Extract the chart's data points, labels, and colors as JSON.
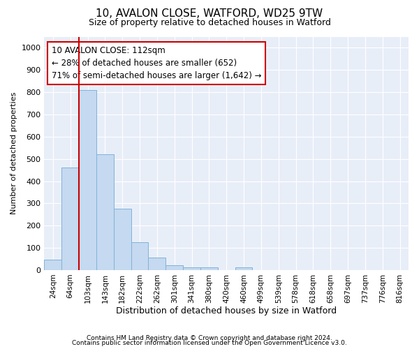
{
  "title1": "10, AVALON CLOSE, WATFORD, WD25 9TW",
  "title2": "Size of property relative to detached houses in Watford",
  "xlabel": "Distribution of detached houses by size in Watford",
  "ylabel": "Number of detached properties",
  "categories": [
    "24sqm",
    "64sqm",
    "103sqm",
    "143sqm",
    "182sqm",
    "222sqm",
    "262sqm",
    "301sqm",
    "341sqm",
    "380sqm",
    "420sqm",
    "460sqm",
    "499sqm",
    "539sqm",
    "578sqm",
    "618sqm",
    "658sqm",
    "697sqm",
    "737sqm",
    "776sqm",
    "816sqm"
  ],
  "values": [
    47,
    460,
    810,
    520,
    275,
    125,
    57,
    22,
    12,
    12,
    0,
    12,
    0,
    0,
    0,
    0,
    0,
    0,
    0,
    0,
    0
  ],
  "bar_color": "#c5d9f0",
  "bar_edge_color": "#7fb3d9",
  "vline_color": "#cc0000",
  "vline_index": 2,
  "ylim": [
    0,
    1050
  ],
  "yticks": [
    0,
    100,
    200,
    300,
    400,
    500,
    600,
    700,
    800,
    900,
    1000
  ],
  "annotation_text_line1": "10 AVALON CLOSE: 112sqm",
  "annotation_text_line2": "← 28% of detached houses are smaller (652)",
  "annotation_text_line3": "71% of semi-detached houses are larger (1,642) →",
  "annotation_box_color": "#cc0000",
  "background_color": "#e8eef8",
  "grid_color": "#ffffff",
  "footer1": "Contains HM Land Registry data © Crown copyright and database right 2024.",
  "footer2": "Contains public sector information licensed under the Open Government Licence v3.0.",
  "title1_fontsize": 11,
  "title2_fontsize": 9,
  "xlabel_fontsize": 9,
  "ylabel_fontsize": 8,
  "tick_fontsize": 8,
  "xtick_fontsize": 7.5,
  "annotation_fontsize": 8.5,
  "footer_fontsize": 6.5
}
